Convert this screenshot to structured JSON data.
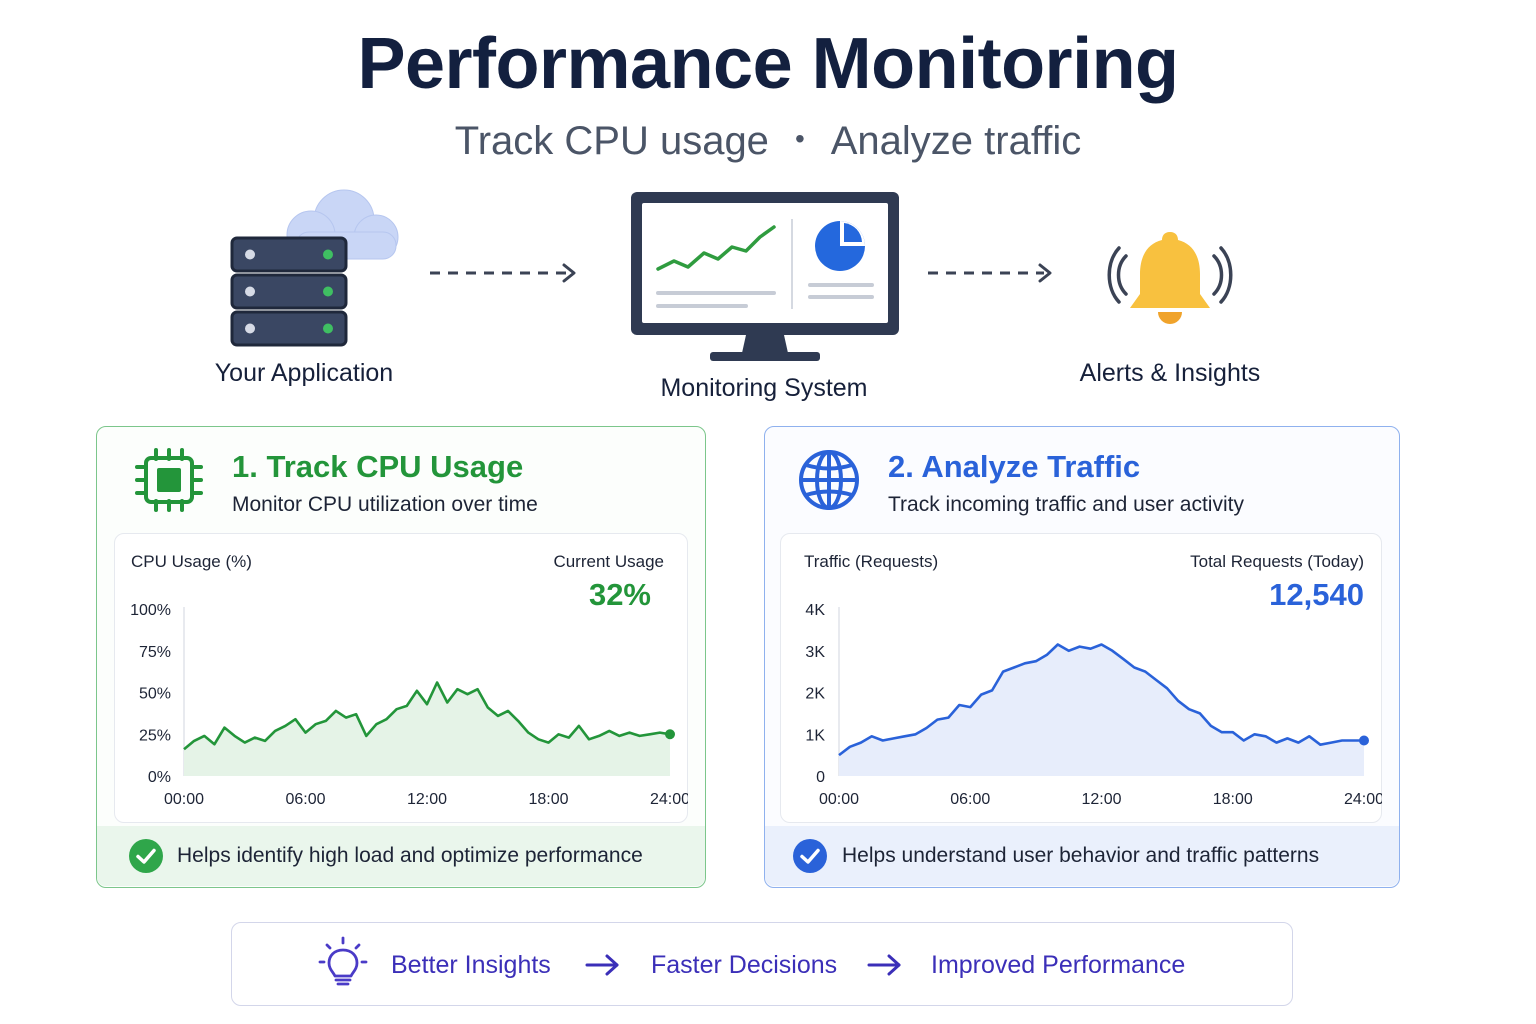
{
  "header": {
    "title": "Performance Monitoring",
    "subtitle_left": "Track CPU usage",
    "subtitle_sep": "•",
    "subtitle_right": "Analyze traffic"
  },
  "flow": {
    "items": [
      {
        "label": "Your Application",
        "icon": "server-cloud-icon"
      },
      {
        "label": "Monitoring System",
        "icon": "monitor-dashboard-icon"
      },
      {
        "label": "Alerts & Insights",
        "icon": "bell-icon"
      }
    ]
  },
  "colors": {
    "cpu_green": "#23953a",
    "traffic_blue": "#2a62d9",
    "alert_yellow": "#f8c13f",
    "insight_purple": "#3b2fb8",
    "title_navy": "#13203f"
  },
  "cpu": {
    "title": "1. Track CPU Usage",
    "description": "Monitor CPU utilization over time",
    "chart_title": "CPU Usage (%)",
    "current_label": "Current Usage",
    "current_value": "32%",
    "footer": "Helps identify high load and optimize performance"
  },
  "traffic": {
    "title": "2. Analyze Traffic",
    "description": "Track incoming traffic and user activity",
    "chart_title": "Traffic (Requests)",
    "total_label": "Total Requests (Today)",
    "total_value": "12,540",
    "footer": "Helps understand user behavior and traffic patterns"
  },
  "chart_data": [
    {
      "type": "area",
      "title": "CPU Usage (%)",
      "ylabel": "CPU Usage (%)",
      "x_ticks": [
        "00:00",
        "06:00",
        "12:00",
        "18:00",
        "24:00"
      ],
      "y_ticks": [
        "0%",
        "25%",
        "50%",
        "75%",
        "100%"
      ],
      "ylim": [
        0,
        100
      ],
      "xlim": [
        0,
        24
      ],
      "grid": false,
      "series": [
        {
          "x": [
            0,
            0.5,
            1,
            1.5,
            2,
            2.5,
            3,
            3.5,
            4,
            4.5,
            5,
            5.5,
            6,
            6.5,
            7,
            7.5,
            8,
            8.5,
            9,
            9.5,
            10,
            10.5,
            11,
            11.5,
            12,
            12.5,
            13,
            13.5,
            14,
            14.5,
            15,
            15.5,
            16,
            16.5,
            17,
            17.5,
            18,
            18.5,
            19,
            19.5,
            20,
            20.5,
            21,
            21.5,
            22,
            22.5,
            23,
            23.5,
            24
          ],
          "values": [
            16,
            21,
            24,
            19,
            29,
            24,
            20,
            23,
            21,
            27,
            30,
            34,
            26,
            31,
            33,
            39,
            35,
            37,
            24,
            31,
            34,
            40,
            42,
            51,
            43,
            56,
            44,
            52,
            49,
            52,
            41,
            36,
            39,
            33,
            26,
            22,
            20,
            25,
            23,
            30,
            22,
            24,
            27,
            24,
            26,
            24,
            25,
            26,
            25
          ]
        }
      ]
    },
    {
      "type": "area",
      "title": "Traffic (Requests)",
      "ylabel": "Traffic (Requests)",
      "x_ticks": [
        "00:00",
        "06:00",
        "12:00",
        "18:00",
        "24:00"
      ],
      "y_ticks": [
        "0",
        "1K",
        "2K",
        "3K",
        "4K"
      ],
      "ylim": [
        0,
        4000
      ],
      "xlim": [
        0,
        24
      ],
      "grid": false,
      "series": [
        {
          "x": [
            0,
            0.5,
            1,
            1.5,
            2,
            2.5,
            3,
            3.5,
            4,
            4.5,
            5,
            5.5,
            6,
            6.5,
            7,
            7.5,
            8,
            8.5,
            9,
            9.5,
            10,
            10.5,
            11,
            11.5,
            12,
            12.5,
            13,
            13.5,
            14,
            14.5,
            15,
            15.5,
            16,
            16.5,
            17,
            17.5,
            18,
            18.5,
            19,
            19.5,
            20,
            20.5,
            21,
            21.5,
            22,
            22.5,
            23,
            23.5,
            24
          ],
          "values": [
            500,
            700,
            800,
            950,
            850,
            900,
            950,
            1000,
            1150,
            1350,
            1400,
            1700,
            1650,
            1950,
            2050,
            2500,
            2600,
            2700,
            2750,
            2900,
            3150,
            3000,
            3100,
            3050,
            3150,
            3000,
            2800,
            2600,
            2500,
            2300,
            2100,
            1800,
            1600,
            1500,
            1200,
            1050,
            1050,
            850,
            1000,
            950,
            800,
            900,
            800,
            950,
            750,
            800,
            850,
            850,
            850
          ]
        }
      ]
    }
  ],
  "insights": {
    "step1": "Better Insights",
    "step2": "Faster Decisions",
    "step3": "Improved Performance"
  }
}
